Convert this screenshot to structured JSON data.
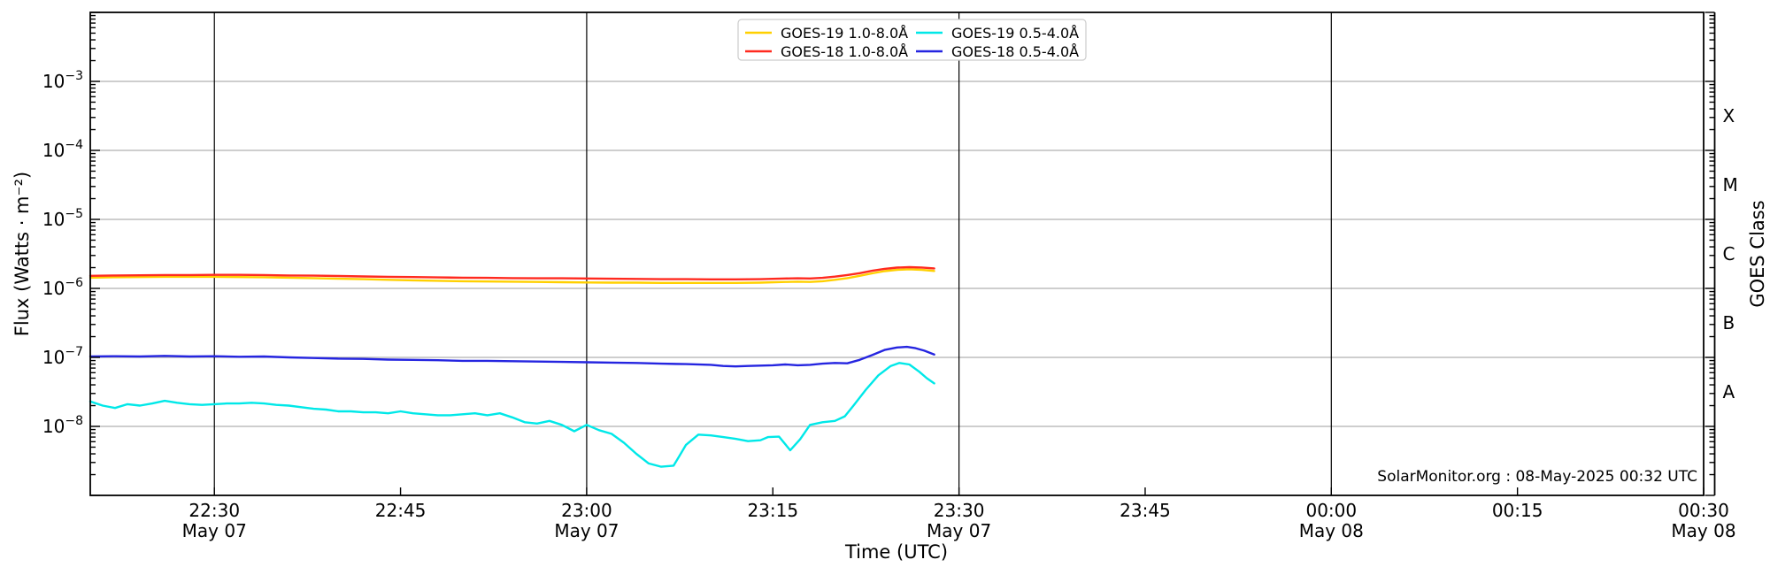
{
  "page": {
    "background": "#ffffff"
  },
  "annotation": {
    "credit_text": "SolarMonitor.org : 08-May-2025 00:32 UTC"
  },
  "axes": {
    "xlabel": "Time (UTC)",
    "ylabel_left": "Flux (Watts · m⁻²)",
    "ylabel_right": "GOES Class"
  },
  "colors": {
    "grid_vertical": "#000000",
    "grid_horizontal": "#b0b0b0",
    "frame": "#000000",
    "legend_border": "#cccccc",
    "background": "#ffffff"
  },
  "chart_data": {
    "type": "line",
    "title": "",
    "xlabel": "Time (UTC)",
    "ylabel": "Flux (Watts · m⁻²)",
    "ylabel_right": "GOES Class",
    "x_axis": {
      "unit": "minutes after 22:20 UTC on 2025 May 07",
      "range": [
        0,
        130
      ],
      "major_ticks": [
        {
          "t": 10,
          "label": "22:30",
          "date": "May 07"
        },
        {
          "t": 25,
          "label": "22:45",
          "date": ""
        },
        {
          "t": 40,
          "label": "23:00",
          "date": "May 07"
        },
        {
          "t": 55,
          "label": "23:15",
          "date": ""
        },
        {
          "t": 70,
          "label": "23:30",
          "date": "May 07"
        },
        {
          "t": 85,
          "label": "23:45",
          "date": ""
        },
        {
          "t": 100,
          "label": "00:00",
          "date": "May 08"
        },
        {
          "t": 115,
          "label": "00:15",
          "date": ""
        },
        {
          "t": 130,
          "label": "00:30",
          "date": "May 08"
        }
      ],
      "gridline_ts": [
        10,
        40,
        70,
        100
      ]
    },
    "y_axis": {
      "scale": "log",
      "range": [
        1e-09,
        0.01
      ],
      "labeled_decades": [
        -3,
        -4,
        -5,
        -6,
        -7,
        -8
      ],
      "gridline_decades": [
        -3,
        -4,
        -5,
        -6,
        -7,
        -8
      ]
    },
    "y_axis_right": {
      "classes": [
        {
          "label": "X",
          "exp_center": -3.5
        },
        {
          "label": "M",
          "exp_center": -4.5
        },
        {
          "label": "C",
          "exp_center": -5.5
        },
        {
          "label": "B",
          "exp_center": -6.5
        },
        {
          "label": "A",
          "exp_center": -7.5
        }
      ]
    },
    "legend": {
      "position": "top-center",
      "columns": 2
    },
    "series": [
      {
        "name": "GOES-19 1.0-8.0Å",
        "color": "#ffd000",
        "points": [
          [
            0,
            1.43e-06
          ],
          [
            2,
            1.45e-06
          ],
          [
            4,
            1.46e-06
          ],
          [
            6,
            1.47e-06
          ],
          [
            8,
            1.47e-06
          ],
          [
            10,
            1.47e-06
          ],
          [
            12,
            1.46e-06
          ],
          [
            14,
            1.45e-06
          ],
          [
            16,
            1.43e-06
          ],
          [
            18,
            1.41e-06
          ],
          [
            20,
            1.38e-06
          ],
          [
            22,
            1.36e-06
          ],
          [
            24,
            1.33e-06
          ],
          [
            26,
            1.31e-06
          ],
          [
            28,
            1.29e-06
          ],
          [
            30,
            1.27e-06
          ],
          [
            32,
            1.26e-06
          ],
          [
            34,
            1.25e-06
          ],
          [
            36,
            1.24e-06
          ],
          [
            38,
            1.23e-06
          ],
          [
            40,
            1.22e-06
          ],
          [
            42,
            1.21e-06
          ],
          [
            44,
            1.21e-06
          ],
          [
            46,
            1.2e-06
          ],
          [
            48,
            1.2e-06
          ],
          [
            50,
            1.2e-06
          ],
          [
            52,
            1.2e-06
          ],
          [
            54,
            1.21e-06
          ],
          [
            56,
            1.24e-06
          ],
          [
            57,
            1.25e-06
          ],
          [
            58,
            1.24e-06
          ],
          [
            59,
            1.27e-06
          ],
          [
            60,
            1.33e-06
          ],
          [
            61,
            1.41e-06
          ],
          [
            62,
            1.52e-06
          ],
          [
            63,
            1.65e-06
          ],
          [
            64,
            1.78e-06
          ],
          [
            65,
            1.86e-06
          ],
          [
            66,
            1.89e-06
          ],
          [
            67,
            1.86e-06
          ],
          [
            68,
            1.79e-06
          ]
        ]
      },
      {
        "name": "GOES-18 1.0-8.0Å",
        "color": "#ff2a1f",
        "points": [
          [
            0,
            1.52e-06
          ],
          [
            2,
            1.54e-06
          ],
          [
            4,
            1.55e-06
          ],
          [
            6,
            1.56e-06
          ],
          [
            8,
            1.56e-06
          ],
          [
            10,
            1.57e-06
          ],
          [
            12,
            1.57e-06
          ],
          [
            14,
            1.56e-06
          ],
          [
            16,
            1.54e-06
          ],
          [
            18,
            1.53e-06
          ],
          [
            20,
            1.51e-06
          ],
          [
            22,
            1.49e-06
          ],
          [
            24,
            1.47e-06
          ],
          [
            26,
            1.46e-06
          ],
          [
            28,
            1.44e-06
          ],
          [
            30,
            1.43e-06
          ],
          [
            32,
            1.42e-06
          ],
          [
            34,
            1.41e-06
          ],
          [
            36,
            1.4e-06
          ],
          [
            38,
            1.4e-06
          ],
          [
            40,
            1.39e-06
          ],
          [
            42,
            1.38e-06
          ],
          [
            44,
            1.37e-06
          ],
          [
            46,
            1.36e-06
          ],
          [
            48,
            1.36e-06
          ],
          [
            50,
            1.35e-06
          ],
          [
            52,
            1.35e-06
          ],
          [
            54,
            1.36e-06
          ],
          [
            56,
            1.39e-06
          ],
          [
            57,
            1.4e-06
          ],
          [
            58,
            1.39e-06
          ],
          [
            59,
            1.42e-06
          ],
          [
            60,
            1.48e-06
          ],
          [
            61,
            1.56e-06
          ],
          [
            62,
            1.66e-06
          ],
          [
            63,
            1.8e-06
          ],
          [
            64,
            1.92e-06
          ],
          [
            65,
            2e-06
          ],
          [
            66,
            2.03e-06
          ],
          [
            67,
            2.01e-06
          ],
          [
            68,
            1.95e-06
          ]
        ]
      },
      {
        "name": "GOES-19 0.5-4.0Å",
        "color": "#00e8e8",
        "points": [
          [
            0,
            2.3e-08
          ],
          [
            1,
            2e-08
          ],
          [
            2,
            1.85e-08
          ],
          [
            3,
            2.1e-08
          ],
          [
            4,
            2e-08
          ],
          [
            5,
            2.15e-08
          ],
          [
            6,
            2.35e-08
          ],
          [
            7,
            2.2e-08
          ],
          [
            8,
            2.1e-08
          ],
          [
            9,
            2.05e-08
          ],
          [
            10,
            2.1e-08
          ],
          [
            11,
            2.15e-08
          ],
          [
            12,
            2.15e-08
          ],
          [
            13,
            2.2e-08
          ],
          [
            14,
            2.15e-08
          ],
          [
            15,
            2.05e-08
          ],
          [
            16,
            2e-08
          ],
          [
            17,
            1.9e-08
          ],
          [
            18,
            1.8e-08
          ],
          [
            19,
            1.75e-08
          ],
          [
            20,
            1.65e-08
          ],
          [
            21,
            1.65e-08
          ],
          [
            22,
            1.6e-08
          ],
          [
            23,
            1.6e-08
          ],
          [
            24,
            1.55e-08
          ],
          [
            25,
            1.65e-08
          ],
          [
            26,
            1.55e-08
          ],
          [
            27,
            1.5e-08
          ],
          [
            28,
            1.45e-08
          ],
          [
            29,
            1.45e-08
          ],
          [
            30,
            1.5e-08
          ],
          [
            31,
            1.55e-08
          ],
          [
            32,
            1.45e-08
          ],
          [
            33,
            1.55e-08
          ],
          [
            34,
            1.35e-08
          ],
          [
            35,
            1.15e-08
          ],
          [
            36,
            1.1e-08
          ],
          [
            37,
            1.2e-08
          ],
          [
            38,
            1.05e-08
          ],
          [
            39,
            8.5e-09
          ],
          [
            40,
            1.05e-08
          ],
          [
            41,
            8.8e-09
          ],
          [
            42,
            7.8e-09
          ],
          [
            43,
            5.8e-09
          ],
          [
            44,
            4e-09
          ],
          [
            45,
            2.9e-09
          ],
          [
            46,
            2.6e-09
          ],
          [
            47,
            2.7e-09
          ],
          [
            47.5,
            3.8e-09
          ],
          [
            48,
            5.4e-09
          ],
          [
            49,
            7.6e-09
          ],
          [
            50,
            7.4e-09
          ],
          [
            51,
            7e-09
          ],
          [
            52,
            6.6e-09
          ],
          [
            53,
            6.1e-09
          ],
          [
            54,
            6.3e-09
          ],
          [
            54.6,
            7e-09
          ],
          [
            55.5,
            7.1e-09
          ],
          [
            56.4,
            4.5e-09
          ],
          [
            57.2,
            6.5e-09
          ],
          [
            58,
            1.05e-08
          ],
          [
            59,
            1.15e-08
          ],
          [
            60,
            1.2e-08
          ],
          [
            60.8,
            1.4e-08
          ],
          [
            61.5,
            2e-08
          ],
          [
            62.5,
            3.4e-08
          ],
          [
            63.5,
            5.5e-08
          ],
          [
            64.5,
            7.5e-08
          ],
          [
            65.2,
            8.3e-08
          ],
          [
            66,
            7.9e-08
          ],
          [
            66.8,
            6.2e-08
          ],
          [
            67.4,
            5e-08
          ],
          [
            68,
            4.2e-08
          ]
        ]
      },
      {
        "name": "GOES-18 0.5-4.0Å",
        "color": "#2525e0",
        "points": [
          [
            0,
            1.03e-07
          ],
          [
            2,
            1.04e-07
          ],
          [
            4,
            1.03e-07
          ],
          [
            6,
            1.05e-07
          ],
          [
            8,
            1.03e-07
          ],
          [
            10,
            1.04e-07
          ],
          [
            12,
            1.02e-07
          ],
          [
            14,
            1.03e-07
          ],
          [
            16,
            1e-07
          ],
          [
            18,
            9.8e-08
          ],
          [
            20,
            9.6e-08
          ],
          [
            22,
            9.5e-08
          ],
          [
            24,
            9.3e-08
          ],
          [
            26,
            9.2e-08
          ],
          [
            28,
            9.1e-08
          ],
          [
            30,
            8.9e-08
          ],
          [
            32,
            8.9e-08
          ],
          [
            34,
            8.8e-08
          ],
          [
            36,
            8.7e-08
          ],
          [
            38,
            8.6e-08
          ],
          [
            40,
            8.5e-08
          ],
          [
            42,
            8.4e-08
          ],
          [
            44,
            8.3e-08
          ],
          [
            46,
            8.1e-08
          ],
          [
            48,
            8e-08
          ],
          [
            50,
            7.8e-08
          ],
          [
            51,
            7.5e-08
          ],
          [
            52,
            7.4e-08
          ],
          [
            53,
            7.5e-08
          ],
          [
            54,
            7.6e-08
          ],
          [
            55,
            7.7e-08
          ],
          [
            56,
            7.9e-08
          ],
          [
            57,
            7.7e-08
          ],
          [
            58,
            7.8e-08
          ],
          [
            59,
            8.1e-08
          ],
          [
            60,
            8.3e-08
          ],
          [
            61,
            8.2e-08
          ],
          [
            62,
            9.2e-08
          ],
          [
            63,
            1.08e-07
          ],
          [
            64,
            1.28e-07
          ],
          [
            65,
            1.39e-07
          ],
          [
            65.8,
            1.42e-07
          ],
          [
            66.5,
            1.36e-07
          ],
          [
            67.2,
            1.25e-07
          ],
          [
            68,
            1.1e-07
          ]
        ]
      }
    ]
  }
}
